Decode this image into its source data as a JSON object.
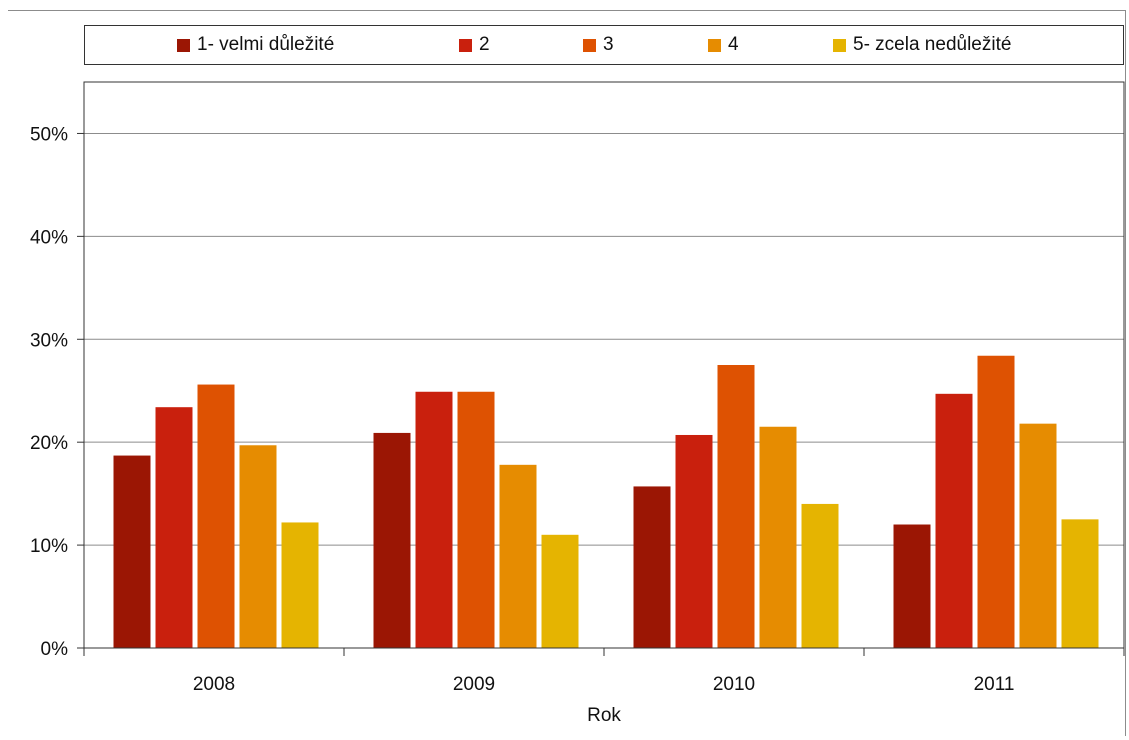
{
  "chart_data": {
    "type": "bar",
    "title": "",
    "xlabel": "Rok",
    "ylabel": "",
    "categories": [
      "2008",
      "2009",
      "2010",
      "2011"
    ],
    "ylim": [
      0,
      0.55
    ],
    "yticks": [
      0,
      0.1,
      0.2,
      0.3,
      0.4,
      0.5
    ],
    "ytick_labels": [
      "0%",
      "10%",
      "20%",
      "30%",
      "40%",
      "50%"
    ],
    "grid": true,
    "legend_position": "top",
    "series": [
      {
        "name": "1- velmi důležité",
        "color": "#9b1604",
        "values": [
          0.187,
          0.209,
          0.157,
          0.12
        ]
      },
      {
        "name": "2",
        "color": "#c9200d",
        "values": [
          0.234,
          0.249,
          0.207,
          0.247
        ]
      },
      {
        "name": "3",
        "color": "#de5202",
        "values": [
          0.256,
          0.249,
          0.275,
          0.284
        ]
      },
      {
        "name": "4",
        "color": "#e68c01",
        "values": [
          0.197,
          0.178,
          0.215,
          0.218
        ]
      },
      {
        "name": "5- zcela nedůležité",
        "color": "#e5b401",
        "values": [
          0.122,
          0.11,
          0.14,
          0.125
        ]
      }
    ]
  }
}
